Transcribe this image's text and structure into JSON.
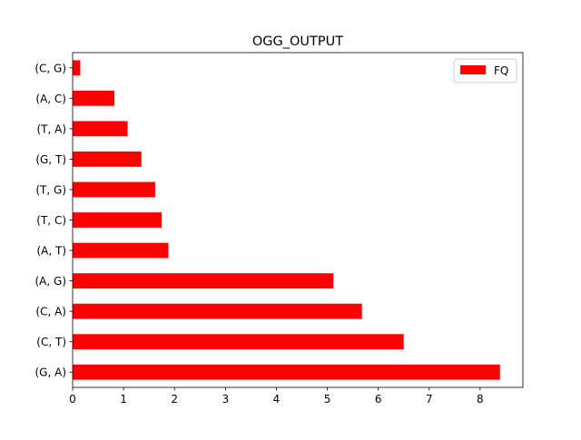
{
  "chart_data": {
    "type": "bar",
    "orientation": "horizontal",
    "title": "OGG_OUTPUT",
    "xlabel": "",
    "ylabel": "",
    "categories": [
      "(G, A)",
      "(C, T)",
      "(C, A)",
      "(A, G)",
      "(A, T)",
      "(T, C)",
      "(T, G)",
      "(G, T)",
      "(T, A)",
      "(A, C)",
      "(C, G)"
    ],
    "series": [
      {
        "name": "FQ",
        "color": "#ff0000",
        "values": [
          8.39,
          6.5,
          5.68,
          5.12,
          1.88,
          1.75,
          1.62,
          1.35,
          1.08,
          0.82,
          0.15
        ]
      }
    ],
    "xlim": [
      0,
      8.84
    ],
    "xticks": [
      0,
      1,
      2,
      3,
      4,
      5,
      6,
      7,
      8
    ],
    "grid": false,
    "legend_position": "top-right"
  }
}
